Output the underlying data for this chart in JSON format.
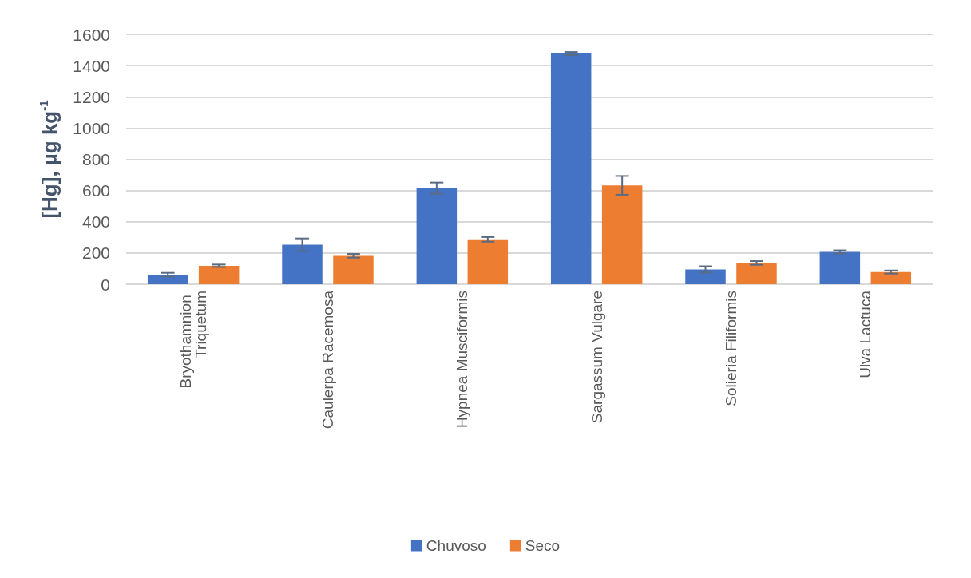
{
  "chart_data": {
    "type": "bar",
    "ylabel": "[Hg], µg kg$^{-1}$",
    "categories": [
      "Bryothamnion Triquetum",
      "Caulerpa Racemosa",
      "Hypnea Musciformis",
      "Sargassum Vulgare",
      "Solieria Filiformis",
      "Ulva Lactuca"
    ],
    "series": [
      {
        "name": "Chuvoso",
        "color": "#4472c4",
        "values": [
          61,
          253,
          615,
          1477,
          95,
          207
        ],
        "errors": [
          12,
          40,
          36,
          10,
          20,
          10
        ]
      },
      {
        "name": "Seco",
        "color": "#ed7d31",
        "values": [
          118,
          182,
          287,
          633,
          136,
          78
        ],
        "errors": [
          8,
          12,
          15,
          60,
          12,
          10
        ]
      }
    ],
    "ylim": [
      0,
      1600
    ],
    "yticks": [
      0,
      200,
      400,
      600,
      800,
      1000,
      1200,
      1400,
      1600
    ],
    "grid": "y",
    "legend": "bottom"
  }
}
